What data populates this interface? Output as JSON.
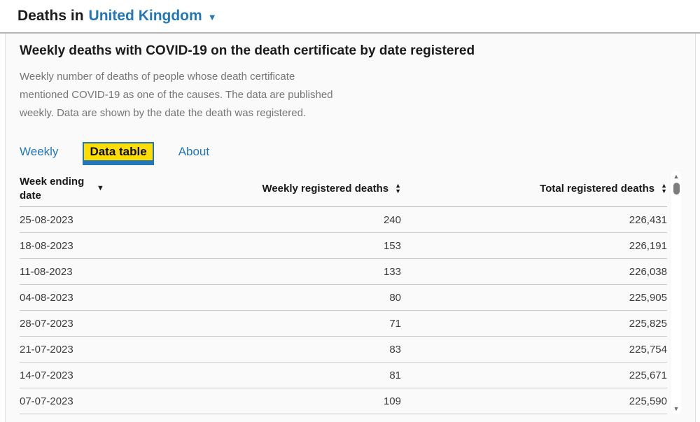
{
  "page": {
    "title_prefix": "Deaths in",
    "region": "United Kingdom"
  },
  "icons": {
    "caret_down": "▼",
    "triangle_up": "▲",
    "triangle_down": "▼"
  },
  "panel": {
    "heading": "Weekly deaths with COVID-19 on the death certificate by date registered",
    "description_lines": [
      "Weekly number of deaths of people whose death certificate",
      "mentioned COVID-19 as one of the causes. The data are published",
      "weekly. Data are shown by the date the death was registered."
    ],
    "tabs": [
      {
        "label": "Weekly",
        "active": false
      },
      {
        "label": "Data table",
        "active": true
      },
      {
        "label": "About",
        "active": false
      }
    ],
    "active_tab": "Data table"
  },
  "table": {
    "columns": [
      {
        "label": "Week ending date",
        "align": "left",
        "sort": "desc"
      },
      {
        "label": "Weekly registered deaths",
        "align": "right",
        "sort": "both"
      },
      {
        "label": "Total registered deaths",
        "align": "right",
        "sort": "both"
      }
    ],
    "rows": [
      [
        "25-08-2023",
        "240",
        "226,431"
      ],
      [
        "18-08-2023",
        "153",
        "226,191"
      ],
      [
        "11-08-2023",
        "133",
        "226,038"
      ],
      [
        "04-08-2023",
        "80",
        "225,905"
      ],
      [
        "28-07-2023",
        "71",
        "225,825"
      ],
      [
        "21-07-2023",
        "83",
        "225,754"
      ],
      [
        "14-07-2023",
        "81",
        "225,671"
      ],
      [
        "07-07-2023",
        "109",
        "225,590"
      ]
    ]
  },
  "colors": {
    "accent_blue": "#2277bb",
    "focus_yellow": "#ffdd00",
    "heading_text": "#1a1a1a",
    "description_text": "#767676",
    "row_border": "#c9c9c9"
  }
}
